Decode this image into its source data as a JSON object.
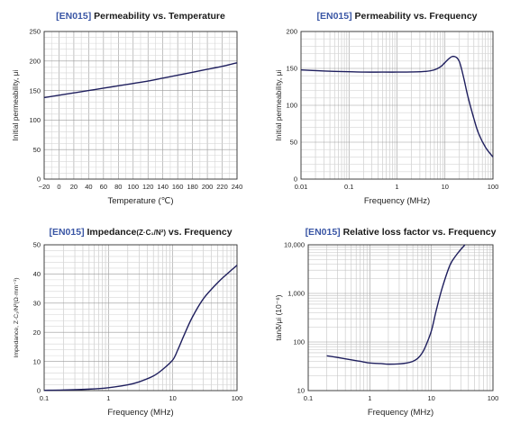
{
  "chart_data": [
    {
      "type": "line",
      "title_code": "[EN015]",
      "title": "Permeability vs. Temperature",
      "xlabel": "Temperature (℃)",
      "ylabel": "Initial permeability, μi",
      "xscale": "linear",
      "yscale": "linear",
      "xlim": [
        -20,
        240
      ],
      "ylim": [
        0,
        250
      ],
      "xticks": [
        -20,
        0,
        20,
        40,
        60,
        80,
        100,
        120,
        140,
        160,
        180,
        200,
        220,
        240
      ],
      "xtick_labels": [
        "−20",
        "0",
        "20",
        "40",
        "60",
        "80",
        "100",
        "120",
        "140",
        "160",
        "180",
        "200",
        "220",
        "240"
      ],
      "yticks": [
        0,
        50,
        100,
        150,
        200,
        250
      ],
      "ytick_labels": [
        "0",
        "50",
        "100",
        "150",
        "200",
        "250"
      ],
      "grid": true,
      "series": [
        {
          "color": "#1f1f5e",
          "x": [
            -20,
            0,
            20,
            40,
            60,
            80,
            100,
            120,
            140,
            160,
            180,
            200,
            220,
            240
          ],
          "y": [
            138,
            142,
            146,
            150,
            154,
            158,
            162,
            166,
            171,
            176,
            181,
            186,
            191,
            197
          ]
        }
      ]
    },
    {
      "type": "line",
      "title_code": "[EN015]",
      "title": "Permeability vs. Frequency",
      "xlabel": "Frequency (MHz)",
      "ylabel": "Initial permeability, μi",
      "xscale": "log",
      "yscale": "linear",
      "xlim": [
        0.01,
        100
      ],
      "ylim": [
        0,
        200
      ],
      "xticks": [
        0.01,
        0.1,
        1,
        10,
        100
      ],
      "xtick_labels": [
        "0.01",
        "0.1",
        "1",
        "10",
        "100"
      ],
      "yticks": [
        0,
        50,
        100,
        150,
        200
      ],
      "ytick_labels": [
        "0",
        "50",
        "100",
        "150",
        "200"
      ],
      "grid": true,
      "series": [
        {
          "color": "#1f1f5e",
          "x": [
            0.01,
            0.02,
            0.05,
            0.1,
            0.2,
            0.5,
            1,
            2,
            4,
            6,
            8,
            10,
            12,
            14,
            16,
            18,
            20,
            22,
            25,
            30,
            40,
            50,
            70,
            100
          ],
          "y": [
            148,
            147,
            146,
            145.5,
            145,
            145,
            145,
            145.2,
            146,
            148,
            152,
            158,
            163,
            166,
            166,
            164,
            159,
            150,
            135,
            112,
            82,
            62,
            43,
            30
          ]
        }
      ]
    },
    {
      "type": "line",
      "title_code": "[EN015]",
      "title": "Impedance",
      "title_suffix": "(Z·C₁/N²)",
      "title_end": " vs. Frequency",
      "xlabel": "Frequency (MHz)",
      "ylabel": "Impedance, Z·C₁/N²(Ω·mm⁻¹)",
      "xscale": "log",
      "yscale": "linear",
      "xlim": [
        0.1,
        100
      ],
      "ylim": [
        0,
        50
      ],
      "xticks": [
        0.1,
        1,
        10,
        100
      ],
      "xtick_labels": [
        "0.1",
        "1",
        "10",
        "100"
      ],
      "yticks": [
        0,
        10,
        20,
        30,
        40,
        50
      ],
      "ytick_labels": [
        "0",
        "10",
        "20",
        "30",
        "40",
        "50"
      ],
      "grid": true,
      "series": [
        {
          "color": "#1f1f5e",
          "x": [
            0.1,
            0.2,
            0.5,
            1,
            2,
            3,
            5,
            7,
            10,
            12,
            15,
            20,
            30,
            50,
            70,
            100
          ],
          "y": [
            0.1,
            0.2,
            0.5,
            1.0,
            2.0,
            3.0,
            5.0,
            7.3,
            10.5,
            14,
            19,
            25,
            31.5,
            37,
            40,
            43
          ]
        }
      ]
    },
    {
      "type": "line",
      "title_code": "[EN015]",
      "title": "Relative loss factor vs. Frequency",
      "xlabel": "Frequency (MHz)",
      "ylabel": "tanδ/μi (10⁻⁶)",
      "xscale": "log",
      "yscale": "log",
      "xlim": [
        0.1,
        100
      ],
      "ylim": [
        10,
        10000
      ],
      "xticks": [
        0.1,
        1,
        10,
        100
      ],
      "xtick_labels": [
        "0.1",
        "1",
        "10",
        "100"
      ],
      "yticks": [
        10,
        100,
        1000,
        10000
      ],
      "ytick_labels": [
        "10",
        "100",
        "1,000",
        "10,000"
      ],
      "grid": true,
      "series": [
        {
          "color": "#1f1f5e",
          "x": [
            0.2,
            0.3,
            0.5,
            0.7,
            1,
            1.5,
            2,
            3,
            4,
            5,
            6,
            7,
            8,
            10,
            12,
            15,
            20,
            25,
            30,
            35
          ],
          "y": [
            52,
            48,
            43,
            40,
            37,
            36,
            35,
            35.5,
            37,
            40,
            46,
            58,
            80,
            170,
            450,
            1300,
            3800,
            6000,
            8000,
            10000
          ]
        }
      ]
    }
  ]
}
